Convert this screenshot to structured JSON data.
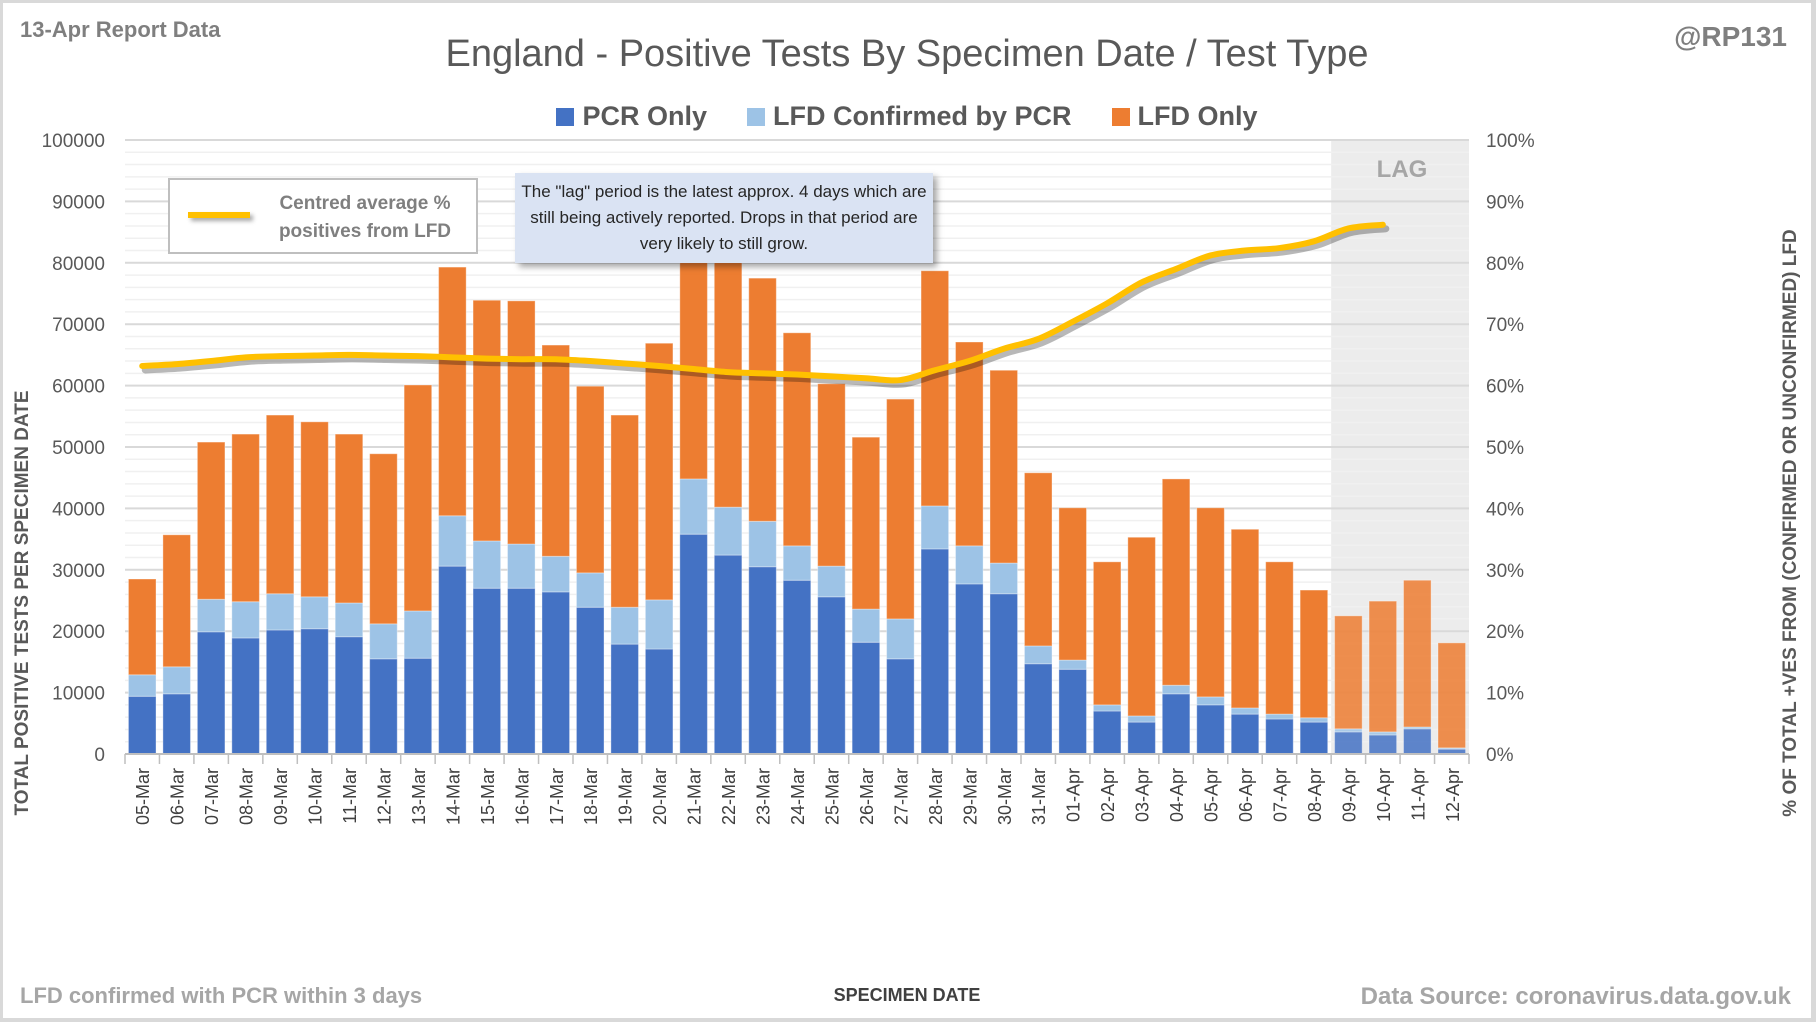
{
  "header": {
    "report_date": "13-Apr Report Data",
    "handle": "@RP131",
    "title": "England - Positive Tests By Specimen Date / Test Type"
  },
  "legend": {
    "items": [
      {
        "label": "PCR Only",
        "color": "#4472c4"
      },
      {
        "label": "LFD Confirmed by PCR",
        "color": "#9dc3e6"
      },
      {
        "label": "LFD Only",
        "color": "#ed7d31"
      }
    ],
    "line_label": "Centred average % positives from LFD",
    "line_color": "#ffc000"
  },
  "annotation": {
    "text": "The \"lag\" period is the latest approx. 4 days which are still being actively reported.  Drops in that period are very likely to still grow.",
    "lag_label": "LAG"
  },
  "footer": {
    "left_note": "LFD confirmed with PCR within 3 days",
    "source": "Data Source: coronavirus.data.gov.uk"
  },
  "chart_data": {
    "type": "bar",
    "stacked": true,
    "title": "England - Positive Tests By Specimen Date / Test Type",
    "xlabel": "SPECIMEN DATE",
    "ylabel": "TOTAL POSITIVE TESTS PER SPECIMEN DATE",
    "ylabel_right": "% OF TOTAL +VES FROM (CONFIRMED OR UNCONFIRMED) LFD",
    "ylim": [
      0,
      100000
    ],
    "ylim_right": [
      0,
      100
    ],
    "yticks": [
      "0",
      "10000",
      "20000",
      "30000",
      "40000",
      "50000",
      "60000",
      "70000",
      "80000",
      "90000",
      "100000"
    ],
    "yticks_right": [
      "0%",
      "10%",
      "20%",
      "30%",
      "40%",
      "50%",
      "60%",
      "70%",
      "80%",
      "90%",
      "100%"
    ],
    "grid": true,
    "legend_position": "top",
    "lag_start": "09-Apr",
    "categories": [
      "05-Mar",
      "06-Mar",
      "07-Mar",
      "08-Mar",
      "09-Mar",
      "10-Mar",
      "11-Mar",
      "12-Mar",
      "13-Mar",
      "14-Mar",
      "15-Mar",
      "16-Mar",
      "17-Mar",
      "18-Mar",
      "19-Mar",
      "20-Mar",
      "21-Mar",
      "22-Mar",
      "23-Mar",
      "24-Mar",
      "25-Mar",
      "26-Mar",
      "27-Mar",
      "28-Mar",
      "29-Mar",
      "30-Mar",
      "31-Mar",
      "01-Apr",
      "02-Apr",
      "03-Apr",
      "04-Apr",
      "05-Apr",
      "06-Apr",
      "07-Apr",
      "08-Apr",
      "09-Apr",
      "10-Apr",
      "11-Apr",
      "12-Apr"
    ],
    "series": [
      {
        "name": "PCR Only",
        "color": "#4472c4",
        "values": [
          9400,
          9800,
          19900,
          18900,
          20200,
          20400,
          19100,
          15500,
          15600,
          30600,
          27000,
          27000,
          26400,
          23900,
          17900,
          17100,
          35800,
          32400,
          30500,
          28300,
          25600,
          18200,
          15500,
          33400,
          27700,
          26100,
          14700,
          13800,
          7000,
          5200,
          9800,
          8000,
          6500,
          5700,
          5200,
          3600,
          3100,
          4100,
          800
        ]
      },
      {
        "name": "LFD Confirmed by PCR",
        "color": "#9dc3e6",
        "values": [
          3500,
          4400,
          5300,
          5900,
          5900,
          5200,
          5500,
          5700,
          7700,
          8200,
          7700,
          7200,
          5800,
          5600,
          6000,
          8000,
          9000,
          7800,
          7400,
          5600,
          5000,
          5400,
          6500,
          7000,
          6200,
          5000,
          2900,
          1500,
          1000,
          1000,
          1400,
          1300,
          1000,
          800,
          700,
          500,
          500,
          300,
          200
        ]
      },
      {
        "name": "LFD Only",
        "color": "#ed7d31",
        "values": [
          15600,
          21500,
          25600,
          27300,
          29100,
          28500,
          27500,
          27700,
          36800,
          40500,
          39200,
          39600,
          34400,
          30400,
          31300,
          41800,
          42300,
          41600,
          39600,
          34700,
          29700,
          28000,
          35800,
          38300,
          33200,
          31400,
          28200,
          24800,
          23300,
          29100,
          33600,
          30800,
          29100,
          24800,
          20800,
          18400,
          21300,
          23900,
          17100
        ]
      }
    ],
    "line_series": {
      "name": "Centred average % positives from LFD",
      "axis": "right",
      "color": "#ffc000",
      "values": [
        63.2,
        63.5,
        64.0,
        64.6,
        64.8,
        64.9,
        65.0,
        64.9,
        64.8,
        64.6,
        64.4,
        64.3,
        64.3,
        64.0,
        63.6,
        63.2,
        62.7,
        62.2,
        62.0,
        61.8,
        61.5,
        61.2,
        60.9,
        62.5,
        64.0,
        66.0,
        67.6,
        70.4,
        73.4,
        76.8,
        79.0,
        81.2,
        82.0,
        82.4,
        83.5,
        85.6,
        86.2,
        null,
        null
      ]
    }
  }
}
